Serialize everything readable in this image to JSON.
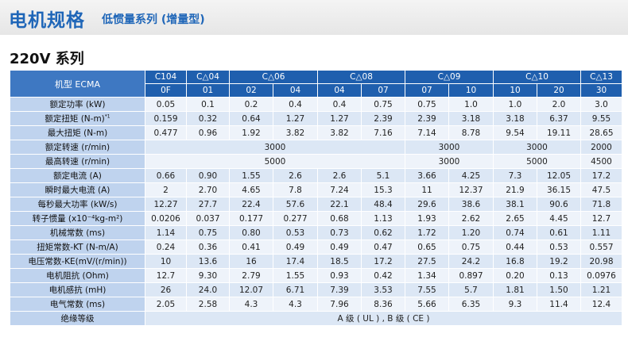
{
  "header": {
    "title": "电机规格",
    "subtitle": "低惯量系列 (增量型)"
  },
  "series_title": "220V 系列",
  "table": {
    "model_label": "机型 ECMA",
    "frames": [
      {
        "label": "C104",
        "span": 1
      },
      {
        "label": "C△04",
        "span": 1
      },
      {
        "label": "C△06",
        "span": 2
      },
      {
        "label": "C△08",
        "span": 2
      },
      {
        "label": "C△09",
        "span": 2
      },
      {
        "label": "C△10",
        "span": 2
      },
      {
        "label": "C△13",
        "span": 1
      }
    ],
    "codes": [
      "0F",
      "01",
      "02",
      "04",
      "04",
      "07",
      "07",
      "10",
      "10",
      "20",
      "30"
    ],
    "rows": [
      {
        "label": "额定功率 (kW)",
        "cells": [
          [
            "0.05",
            1
          ],
          [
            "0.1",
            1
          ],
          [
            "0.2",
            1
          ],
          [
            "0.4",
            1
          ],
          [
            "0.4",
            1
          ],
          [
            "0.75",
            1
          ],
          [
            "0.75",
            1
          ],
          [
            "1.0",
            1
          ],
          [
            "1.0",
            1
          ],
          [
            "2.0",
            1
          ],
          [
            "3.0",
            1
          ]
        ]
      },
      {
        "label": "额定扭矩 (N-m)",
        "label_sup": "*1",
        "cells": [
          [
            "0.159",
            1
          ],
          [
            "0.32",
            1
          ],
          [
            "0.64",
            1
          ],
          [
            "1.27",
            1
          ],
          [
            "1.27",
            1
          ],
          [
            "2.39",
            1
          ],
          [
            "2.39",
            1
          ],
          [
            "3.18",
            1
          ],
          [
            "3.18",
            1
          ],
          [
            "6.37",
            1
          ],
          [
            "9.55",
            1
          ]
        ]
      },
      {
        "label": "最大扭矩 (N-m)",
        "cells": [
          [
            "0.477",
            1
          ],
          [
            "0.96",
            1
          ],
          [
            "1.92",
            1
          ],
          [
            "3.82",
            1
          ],
          [
            "3.82",
            1
          ],
          [
            "7.16",
            1
          ],
          [
            "7.14",
            1
          ],
          [
            "8.78",
            1
          ],
          [
            "9.54",
            1
          ],
          [
            "19.11",
            1
          ],
          [
            "28.65",
            1
          ]
        ]
      },
      {
        "label": "额定转速 (r/min)",
        "cells": [
          [
            "3000",
            6
          ],
          [
            "3000",
            2
          ],
          [
            "3000",
            2
          ],
          [
            "2000",
            1
          ]
        ]
      },
      {
        "label": "最高转速 (r/min)",
        "cells": [
          [
            "5000",
            6
          ],
          [
            "3000",
            2
          ],
          [
            "5000",
            2
          ],
          [
            "4500",
            1
          ]
        ]
      },
      {
        "label": "额定电流 (A)",
        "cells": [
          [
            "0.66",
            1
          ],
          [
            "0.90",
            1
          ],
          [
            "1.55",
            1
          ],
          [
            "2.6",
            1
          ],
          [
            "2.6",
            1
          ],
          [
            "5.1",
            1
          ],
          [
            "3.66",
            1
          ],
          [
            "4.25",
            1
          ],
          [
            "7.3",
            1
          ],
          [
            "12.05",
            1
          ],
          [
            "17.2",
            1
          ]
        ]
      },
      {
        "label": "瞬时最大电流 (A)",
        "cells": [
          [
            "2",
            1
          ],
          [
            "2.70",
            1
          ],
          [
            "4.65",
            1
          ],
          [
            "7.8",
            1
          ],
          [
            "7.24",
            1
          ],
          [
            "15.3",
            1
          ],
          [
            "11",
            1
          ],
          [
            "12.37",
            1
          ],
          [
            "21.9",
            1
          ],
          [
            "36.15",
            1
          ],
          [
            "47.5",
            1
          ]
        ]
      },
      {
        "label": "每秒最大功率 (kW/s)",
        "cells": [
          [
            "12.27",
            1
          ],
          [
            "27.7",
            1
          ],
          [
            "22.4",
            1
          ],
          [
            "57.6",
            1
          ],
          [
            "22.1",
            1
          ],
          [
            "48.4",
            1
          ],
          [
            "29.6",
            1
          ],
          [
            "38.6",
            1
          ],
          [
            "38.1",
            1
          ],
          [
            "90.6",
            1
          ],
          [
            "71.8",
            1
          ]
        ]
      },
      {
        "label": "转子惯量 (x10⁻⁴kg-m²)",
        "cells": [
          [
            "0.0206",
            1
          ],
          [
            "0.037",
            1
          ],
          [
            "0.177",
            1
          ],
          [
            "0.277",
            1
          ],
          [
            "0.68",
            1
          ],
          [
            "1.13",
            1
          ],
          [
            "1.93",
            1
          ],
          [
            "2.62",
            1
          ],
          [
            "2.65",
            1
          ],
          [
            "4.45",
            1
          ],
          [
            "12.7",
            1
          ]
        ]
      },
      {
        "label": "机械常数 (ms)",
        "cells": [
          [
            "1.14",
            1
          ],
          [
            "0.75",
            1
          ],
          [
            "0.80",
            1
          ],
          [
            "0.53",
            1
          ],
          [
            "0.73",
            1
          ],
          [
            "0.62",
            1
          ],
          [
            "1.72",
            1
          ],
          [
            "1.20",
            1
          ],
          [
            "0.74",
            1
          ],
          [
            "0.61",
            1
          ],
          [
            "1.11",
            1
          ]
        ]
      },
      {
        "label": "扭矩常数-KT (N-m/A)",
        "cells": [
          [
            "0.24",
            1
          ],
          [
            "0.36",
            1
          ],
          [
            "0.41",
            1
          ],
          [
            "0.49",
            1
          ],
          [
            "0.49",
            1
          ],
          [
            "0.47",
            1
          ],
          [
            "0.65",
            1
          ],
          [
            "0.75",
            1
          ],
          [
            "0.44",
            1
          ],
          [
            "0.53",
            1
          ],
          [
            "0.557",
            1
          ]
        ]
      },
      {
        "label": "电压常数-KE(mV/(r/min))",
        "cells": [
          [
            "10",
            1
          ],
          [
            "13.6",
            1
          ],
          [
            "16",
            1
          ],
          [
            "17.4",
            1
          ],
          [
            "18.5",
            1
          ],
          [
            "17.2",
            1
          ],
          [
            "27.5",
            1
          ],
          [
            "24.2",
            1
          ],
          [
            "16.8",
            1
          ],
          [
            "19.2",
            1
          ],
          [
            "20.98",
            1
          ]
        ]
      },
      {
        "label": "电机阻抗 (Ohm)",
        "cells": [
          [
            "12.7",
            1
          ],
          [
            "9.30",
            1
          ],
          [
            "2.79",
            1
          ],
          [
            "1.55",
            1
          ],
          [
            "0.93",
            1
          ],
          [
            "0.42",
            1
          ],
          [
            "1.34",
            1
          ],
          [
            "0.897",
            1
          ],
          [
            "0.20",
            1
          ],
          [
            "0.13",
            1
          ],
          [
            "0.0976",
            1
          ]
        ]
      },
      {
        "label": "电机感抗 (mH)",
        "cells": [
          [
            "26",
            1
          ],
          [
            "24.0",
            1
          ],
          [
            "12.07",
            1
          ],
          [
            "6.71",
            1
          ],
          [
            "7.39",
            1
          ],
          [
            "3.53",
            1
          ],
          [
            "7.55",
            1
          ],
          [
            "5.7",
            1
          ],
          [
            "1.81",
            1
          ],
          [
            "1.50",
            1
          ],
          [
            "1.21",
            1
          ]
        ]
      },
      {
        "label": "电气常数 (ms)",
        "cells": [
          [
            "2.05",
            1
          ],
          [
            "2.58",
            1
          ],
          [
            "4.3",
            1
          ],
          [
            "4.3",
            1
          ],
          [
            "7.96",
            1
          ],
          [
            "8.36",
            1
          ],
          [
            "5.66",
            1
          ],
          [
            "6.35",
            1
          ],
          [
            "9.3",
            1
          ],
          [
            "11.4",
            1
          ],
          [
            "12.4",
            1
          ]
        ]
      },
      {
        "label": "绝缘等级",
        "cells": [
          [
            "A 级 ( UL ) , B 级 ( CE )",
            11
          ]
        ]
      }
    ]
  }
}
